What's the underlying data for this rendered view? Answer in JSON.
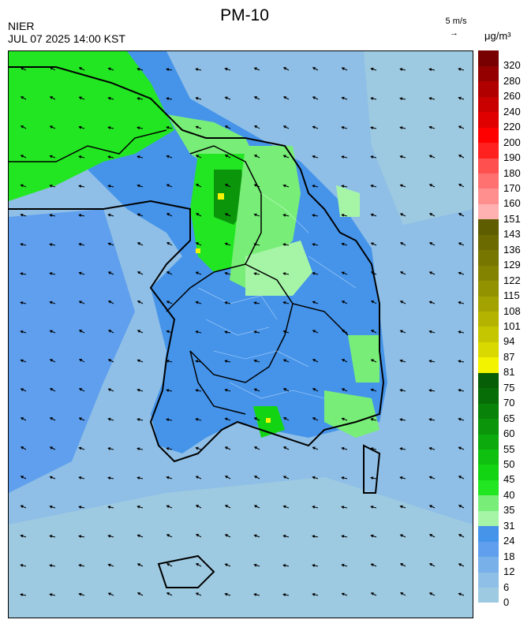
{
  "header": {
    "title": "PM-10",
    "agency": "NIER",
    "datetime": "JUL 07 2025 14:00 KST",
    "wind_reference": "5 m/s",
    "unit": "μg/m³"
  },
  "legend": {
    "bins": [
      {
        "label": "0",
        "color": "#9ecae1"
      },
      {
        "label": "6",
        "color": "#8fbfe6"
      },
      {
        "label": "12",
        "color": "#78b0ea"
      },
      {
        "label": "18",
        "color": "#5f9fed"
      },
      {
        "label": "24",
        "color": "#4594ea"
      },
      {
        "label": "31",
        "color": "#a6f5a6"
      },
      {
        "label": "35",
        "color": "#78ee78"
      },
      {
        "label": "40",
        "color": "#22e622"
      },
      {
        "label": "45",
        "color": "#12d412"
      },
      {
        "label": "50",
        "color": "#10c010"
      },
      {
        "label": "55",
        "color": "#0daa0d"
      },
      {
        "label": "60",
        "color": "#0b950b"
      },
      {
        "label": "65",
        "color": "#098209"
      },
      {
        "label": "70",
        "color": "#076e07"
      },
      {
        "label": "75",
        "color": "#065e06"
      },
      {
        "label": "81",
        "color": "#f3f300"
      },
      {
        "label": "87",
        "color": "#d9d900"
      },
      {
        "label": "94",
        "color": "#c6c600"
      },
      {
        "label": "101",
        "color": "#b3b300"
      },
      {
        "label": "108",
        "color": "#a2a200"
      },
      {
        "label": "115",
        "color": "#929200"
      },
      {
        "label": "122",
        "color": "#838300"
      },
      {
        "label": "129",
        "color": "#767600"
      },
      {
        "label": "136",
        "color": "#6a6a00"
      },
      {
        "label": "143",
        "color": "#5e5e00"
      },
      {
        "label": "151",
        "color": "#ffb0b0"
      },
      {
        "label": "160",
        "color": "#ff8f8f"
      },
      {
        "label": "170",
        "color": "#ff7070"
      },
      {
        "label": "180",
        "color": "#ff5050"
      },
      {
        "label": "190",
        "color": "#ff2020"
      },
      {
        "label": "200",
        "color": "#ff0000"
      },
      {
        "label": "220",
        "color": "#e00000"
      },
      {
        "label": "240",
        "color": "#c80000"
      },
      {
        "label": "260",
        "color": "#b00000"
      },
      {
        "label": "280",
        "color": "#940000"
      },
      {
        "label": "320",
        "color": "#780000"
      }
    ]
  }
}
